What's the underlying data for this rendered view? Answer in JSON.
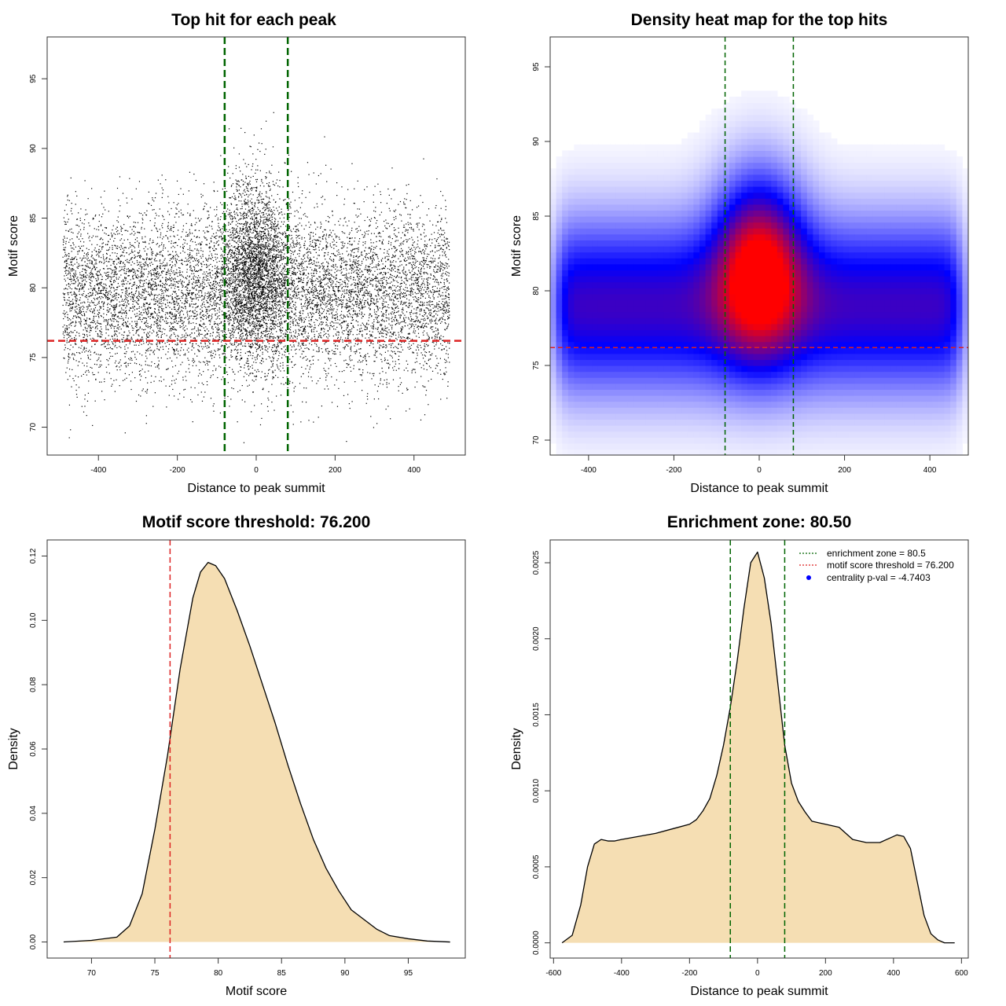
{
  "chart_data": [
    {
      "id": "scatter",
      "type": "scatter",
      "title": "Top hit for each peak",
      "xlabel": "Distance to peak summit",
      "ylabel": "Motif score",
      "xlim": [
        -530,
        530
      ],
      "ylim": [
        68,
        98
      ],
      "xticks": [
        -400,
        -200,
        0,
        200,
        400
      ],
      "yticks": [
        70,
        75,
        80,
        85,
        90,
        95
      ],
      "x_range_of_points": [
        -490,
        490
      ],
      "approx_point_count": 12000,
      "central_cluster": {
        "x_center": 0,
        "x_sd": 45,
        "y_center": 81.5,
        "y_sd": 3.2
      },
      "background_cloud": {
        "y_center": 79.5,
        "y_sd": 3.0
      },
      "vlines": [
        -80,
        80
      ],
      "vline_color": "#006400",
      "hline": 76.2,
      "hline_color": "#dd2222",
      "point_color": "#000000"
    },
    {
      "id": "heatmap",
      "type": "heatmap",
      "title": "Density heat map for the top hits",
      "xlabel": "Distance to peak summit",
      "ylabel": "Motif score",
      "xlim": [
        -490,
        490
      ],
      "ylim": [
        69,
        97
      ],
      "xticks": [
        -400,
        -200,
        0,
        200,
        400
      ],
      "yticks": [
        70,
        75,
        80,
        85,
        90,
        95
      ],
      "vlines": [
        -80,
        80
      ],
      "vline_color": "#006400",
      "hline": 76.2,
      "hline_color": "#dd2222",
      "colors": [
        "#ffffff",
        "#0000ff",
        "#ff0000"
      ]
    },
    {
      "id": "score_density",
      "type": "area",
      "title": "Motif score threshold: 76.200",
      "xlabel": "Motif score",
      "ylabel": "Density",
      "xlim": [
        66.5,
        99.5
      ],
      "ylim": [
        -0.005,
        0.125
      ],
      "xticks": [
        70,
        75,
        80,
        85,
        90,
        95
      ],
      "yticks": [
        0.0,
        0.02,
        0.04,
        0.06,
        0.08,
        0.1,
        0.12
      ],
      "ytick_labels": [
        "0.00",
        "0.02",
        "0.04",
        "0.06",
        "0.08",
        "0.10",
        "0.12"
      ],
      "x": [
        67.8,
        70,
        72,
        73,
        74,
        75,
        76,
        77,
        78,
        78.6,
        79.2,
        79.8,
        80.5,
        81.5,
        82.5,
        83.5,
        84.5,
        85.5,
        86.5,
        87.5,
        88.5,
        89.5,
        90.5,
        91.5,
        92.5,
        93.5,
        95,
        96.5,
        98.3
      ],
      "y": [
        0.0,
        0.0005,
        0.0015,
        0.005,
        0.015,
        0.035,
        0.058,
        0.085,
        0.107,
        0.115,
        0.118,
        0.117,
        0.113,
        0.103,
        0.092,
        0.08,
        0.068,
        0.055,
        0.043,
        0.032,
        0.023,
        0.016,
        0.01,
        0.007,
        0.004,
        0.002,
        0.001,
        0.0003,
        0.0
      ],
      "fill": "#f5deb3",
      "vline": 76.2,
      "vline_color": "#dd2222"
    },
    {
      "id": "distance_density",
      "type": "area",
      "title": "Enrichment zone: 80.50",
      "xlabel": "Distance to peak summit",
      "ylabel": "Density",
      "xlim": [
        -610,
        620
      ],
      "ylim": [
        -0.0001,
        0.00265
      ],
      "xticks": [
        -600,
        -400,
        -200,
        0,
        200,
        400,
        600
      ],
      "yticks": [
        0.0,
        0.0005,
        0.001,
        0.0015,
        0.002,
        0.0025
      ],
      "ytick_labels": [
        "0.0000",
        "0.0005",
        "0.0010",
        "0.0015",
        "0.0020",
        "0.0025"
      ],
      "x": [
        -575,
        -545,
        -520,
        -500,
        -480,
        -460,
        -440,
        -420,
        -400,
        -350,
        -300,
        -250,
        -200,
        -180,
        -160,
        -140,
        -120,
        -100,
        -80,
        -60,
        -40,
        -20,
        0,
        20,
        40,
        60,
        80,
        100,
        120,
        140,
        160,
        180,
        200,
        240,
        280,
        320,
        360,
        390,
        410,
        430,
        450,
        470,
        490,
        510,
        530,
        550,
        580
      ],
      "y": [
        0.0,
        5e-05,
        0.00025,
        0.0005,
        0.00065,
        0.00068,
        0.00067,
        0.00067,
        0.00068,
        0.0007,
        0.00072,
        0.00075,
        0.00078,
        0.00081,
        0.00087,
        0.00095,
        0.0011,
        0.0013,
        0.00155,
        0.00185,
        0.0022,
        0.0025,
        0.00257,
        0.0024,
        0.0021,
        0.0017,
        0.0013,
        0.00105,
        0.00093,
        0.00086,
        0.0008,
        0.00079,
        0.00078,
        0.00076,
        0.00068,
        0.00066,
        0.00066,
        0.00069,
        0.00071,
        0.0007,
        0.00062,
        0.0004,
        0.00018,
        6e-05,
        2e-05,
        0.0,
        0.0
      ],
      "fill": "#f5deb3",
      "vlines": [
        -80,
        80
      ],
      "vline_color": "#006400",
      "legend": {
        "position": "top-right",
        "items": [
          {
            "label": "enrichment zone = 80.5",
            "color": "#006400",
            "kind": "dotted-line"
          },
          {
            "label": "motif score threshold = 76.200",
            "color": "#dd2222",
            "kind": "dotted-line"
          },
          {
            "label": "centrality p-val = -4.7403",
            "color": "#0000ff",
            "kind": "point"
          }
        ]
      }
    }
  ]
}
